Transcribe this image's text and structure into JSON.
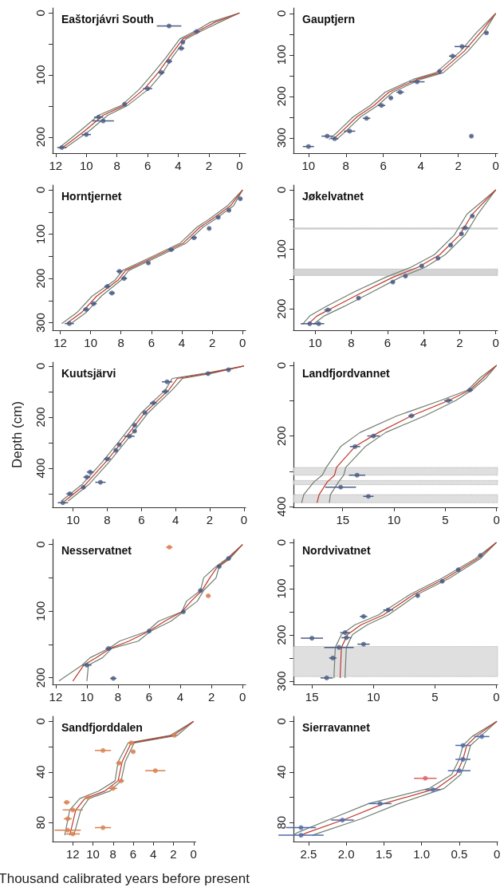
{
  "chart_data": [
    {
      "type": "line",
      "title": "Eaštorjávri South",
      "xlim": [
        12.2,
        -0.4
      ],
      "xticks": [
        12,
        10,
        8,
        6,
        4,
        2,
        0
      ],
      "ylim": [
        226,
        -8
      ],
      "yticks": [
        0,
        {
          "value": 50,
          "label": null
        },
        100,
        {
          "value": 150,
          "label": null
        },
        200
      ],
      "series": [
        {
          "type": "line",
          "color": "#6f7f70",
          "x": [
            0,
            1.9,
            2.8,
            3.9,
            4.8,
            5.6,
            6.5,
            7.7,
            9.2,
            10.4,
            11.8
          ],
          "values": [
            0,
            15,
            28,
            42,
            72,
            96,
            122,
            149,
            165,
            190,
            218
          ]
        },
        {
          "type": "line",
          "color": "#6f7f70",
          "x": [
            0,
            1.3,
            2.4,
            3.5,
            4.4,
            5.0,
            5.9,
            7.3,
            8.6,
            9.8,
            11.4
          ],
          "values": [
            0,
            15,
            28,
            42,
            72,
            96,
            122,
            149,
            165,
            190,
            218
          ]
        },
        {
          "type": "line",
          "color": "#c0392b",
          "x": [
            0,
            1.6,
            2.6,
            3.7,
            4.6,
            5.3,
            6.2,
            7.5,
            8.9,
            10.1,
            11.6
          ],
          "values": [
            0,
            15,
            28,
            42,
            72,
            96,
            122,
            149,
            165,
            190,
            218
          ]
        },
        {
          "type": "scatter",
          "color": "#4b5c84",
          "x": [
            4.6,
            2.8,
            3.7,
            3.8,
            4.6,
            5.1,
            6.0,
            7.5,
            9.2,
            8.9,
            10.0,
            11.6
          ],
          "values": [
            21,
            30,
            47,
            57,
            78,
            96,
            122,
            147,
            168,
            174,
            196,
            217
          ],
          "xerrors": [
            0.8,
            0.2,
            0.1,
            0.2,
            0.2,
            0.2,
            0.3,
            0.1,
            0.3,
            0.7,
            0.3,
            0.3
          ]
        }
      ]
    },
    {
      "type": "line",
      "title": "Gauptjern",
      "xlim": [
        10.8,
        -0.1
      ],
      "xticks": [
        10,
        8,
        6,
        4,
        2,
        0
      ],
      "ylim": [
        337,
        -13
      ],
      "yticks": [
        0,
        {
          "value": 50,
          "label": null
        },
        100,
        {
          "value": 150,
          "label": null
        },
        200,
        {
          "value": 250,
          "label": null
        },
        300
      ],
      "series": [
        {
          "type": "line",
          "color": "#6f7f70",
          "x": [
            0,
            1.0,
            1.9,
            3.2,
            4.4,
            5.9,
            6.7,
            7.6,
            8.4,
            8.9
          ],
          "values": [
            0,
            45,
            92,
            143,
            159,
            190,
            222,
            249,
            284,
            304
          ]
        },
        {
          "type": "line",
          "color": "#6f7f70",
          "x": [
            0,
            0.6,
            1.5,
            2.8,
            4.0,
            5.5,
            6.3,
            7.2,
            8.0,
            8.5
          ],
          "values": [
            0,
            45,
            92,
            143,
            159,
            190,
            222,
            249,
            284,
            304
          ]
        },
        {
          "type": "line",
          "color": "#c0392b",
          "x": [
            0,
            0.8,
            1.7,
            3.0,
            4.2,
            5.7,
            6.5,
            7.4,
            8.2,
            8.7
          ],
          "values": [
            0,
            45,
            92,
            143,
            159,
            190,
            222,
            249,
            284,
            304
          ]
        },
        {
          "type": "scatter",
          "color": "#4b5c84",
          "x": [
            0.5,
            1.8,
            2.3,
            3.0,
            4.2,
            5.1,
            5.6,
            6.1,
            6.9,
            7.8,
            9.0,
            8.6,
            10.0,
            1.3
          ],
          "values": [
            47,
            80,
            103,
            140,
            165,
            190,
            204,
            222,
            253,
            284,
            296,
            302,
            321,
            296
          ],
          "xerrors": [
            0.1,
            0.4,
            0.2,
            0.1,
            0.4,
            0.2,
            0.1,
            0.2,
            0.2,
            0.3,
            0.3,
            0.2,
            0.3,
            0.05
          ]
        }
      ]
    },
    {
      "type": "line",
      "title": "Horntjernet",
      "xlim": [
        12.5,
        -0.2
      ],
      "xticks": [
        12,
        10,
        8,
        6,
        4,
        2,
        0
      ],
      "ylim": [
        317,
        -11
      ],
      "yticks": [
        0,
        {
          "value": 50,
          "label": null
        },
        100,
        {
          "value": 150,
          "label": null
        },
        200,
        {
          "value": 250,
          "label": null
        },
        300
      ],
      "series": [
        {
          "type": "line",
          "color": "#6f7f70",
          "x": [
            0,
            1.0,
            2.2,
            3.0,
            4.1,
            6.1,
            7.9,
            8.4,
            9.9,
            10.9,
            11.9
          ],
          "values": [
            0,
            36,
            66,
            84,
            120,
            153,
            182,
            204,
            240,
            277,
            302
          ]
        },
        {
          "type": "line",
          "color": "#6f7f70",
          "x": [
            0,
            0.6,
            1.8,
            2.6,
            3.7,
            5.7,
            7.5,
            8.0,
            9.3,
            10.3,
            11.3
          ],
          "values": [
            0,
            36,
            66,
            84,
            120,
            153,
            182,
            204,
            240,
            277,
            302
          ]
        },
        {
          "type": "line",
          "color": "#c0392b",
          "x": [
            0,
            0.8,
            2.0,
            2.8,
            3.9,
            5.9,
            7.7,
            8.2,
            9.6,
            10.6,
            11.6
          ],
          "values": [
            0,
            36,
            66,
            84,
            120,
            153,
            182,
            204,
            240,
            277,
            302
          ]
        },
        {
          "type": "scatter",
          "color": "#4b5c84",
          "x": [
            0.15,
            0.9,
            1.6,
            2.2,
            3.2,
            4.7,
            6.2,
            8.1,
            7.8,
            8.9,
            8.6,
            9.8,
            10.3,
            11.4
          ],
          "values": [
            20,
            46,
            62,
            87,
            108,
            135,
            165,
            184,
            200,
            218,
            233,
            257,
            270,
            302
          ],
          "xerrors": [
            0.1,
            0.1,
            0.1,
            0.1,
            0.2,
            0.2,
            0.1,
            0.2,
            0.2,
            0.2,
            0.2,
            0.2,
            0.2,
            0.3
          ]
        }
      ]
    },
    {
      "type": "line",
      "title": "Jøkelvatnet",
      "xlim": [
        11.2,
        -0.1
      ],
      "xticks": [
        10,
        8,
        6,
        4,
        2,
        0
      ],
      "ylim": [
        236,
        -8
      ],
      "yticks": [
        0,
        {
          "value": 50,
          "label": null
        },
        100,
        {
          "value": 150,
          "label": null
        },
        200
      ],
      "bands": [
        {
          "axis": "y",
          "from": 64,
          "to": 66,
          "color": "#cccccc"
        },
        {
          "axis": "y",
          "from": 133,
          "to": 144,
          "color": "#cccccc"
        }
      ],
      "series": [
        {
          "type": "line",
          "color": "#6f7f70",
          "x": [
            0,
            1.6,
            2.3,
            3.4,
            4.7,
            6.1,
            7.8,
            9.4,
            10.3,
            10.7
          ],
          "values": [
            0,
            41,
            76,
            109,
            130,
            147,
            171,
            196,
            212,
            226
          ]
        },
        {
          "type": "line",
          "color": "#6f7f70",
          "x": [
            0,
            1.0,
            1.7,
            2.8,
            3.9,
            5.3,
            6.8,
            8.4,
            9.5,
            10.1
          ],
          "values": [
            0,
            41,
            76,
            109,
            130,
            147,
            171,
            196,
            212,
            226
          ]
        },
        {
          "type": "line",
          "color": "#c0392b",
          "x": [
            0,
            1.3,
            2.0,
            3.1,
            4.3,
            5.7,
            7.3,
            8.9,
            9.9,
            10.4
          ],
          "values": [
            0,
            41,
            76,
            109,
            130,
            147,
            171,
            196,
            212,
            226
          ]
        },
        {
          "type": "scatter",
          "color": "#4b5c84",
          "x": [
            1.3,
            1.7,
            1.9,
            2.5,
            3.2,
            4.1,
            5.0,
            5.7,
            7.6,
            9.3,
            10.3,
            9.8
          ],
          "values": [
            44,
            64,
            74,
            93,
            115,
            128,
            145,
            155,
            182,
            202,
            225,
            225
          ],
          "xerrors": [
            0.1,
            0.2,
            0.1,
            0.1,
            0.1,
            0.1,
            0.1,
            0.1,
            0.1,
            0.2,
            0.5,
            0.3
          ]
        }
      ]
    },
    {
      "type": "line",
      "title": "Kuutsjärvi",
      "ylabel": "Depth (cm)",
      "xlim": [
        11.2,
        -0.1
      ],
      "xticks": [
        10,
        8,
        6,
        4,
        2,
        0
      ],
      "ylim": [
        553,
        -15
      ],
      "yticks": [
        0,
        {
          "value": 100,
          "label": null
        },
        200,
        {
          "value": 300,
          "label": null
        },
        400,
        {
          "value": 500,
          "label": null
        }
      ],
      "series": [
        {
          "type": "line",
          "color": "#6f7f70",
          "x": [
            0,
            2.3,
            4.2,
            4.6,
            6.0,
            7.2,
            8.3,
            9.5,
            10.7
          ],
          "values": [
            0,
            29,
            49,
            94,
            183,
            286,
            376,
            465,
            529
          ]
        },
        {
          "type": "line",
          "color": "#6f7f70",
          "x": [
            0,
            1.9,
            3.6,
            4.2,
            5.6,
            6.8,
            7.9,
            9.1,
            10.3
          ],
          "values": [
            0,
            29,
            49,
            94,
            183,
            286,
            376,
            465,
            529
          ]
        },
        {
          "type": "line",
          "color": "#c0392b",
          "x": [
            0,
            2.1,
            3.9,
            4.4,
            5.8,
            7.0,
            8.1,
            9.3,
            10.5
          ],
          "values": [
            0,
            29,
            49,
            94,
            183,
            286,
            376,
            465,
            529
          ]
        },
        {
          "type": "scatter",
          "color": "#4b5c84",
          "x": [
            0.9,
            2.1,
            4.5,
            4.6,
            5.3,
            5.8,
            6.4,
            6.4,
            6.7,
            7.3,
            7.5,
            8.0,
            9.0,
            9.2,
            8.4,
            9.4,
            10.2,
            10.6
          ],
          "values": [
            15,
            30,
            62,
            100,
            145,
            183,
            232,
            255,
            275,
            308,
            330,
            364,
            415,
            435,
            455,
            475,
            500,
            535
          ],
          "xerrors": [
            0.1,
            0.1,
            0.3,
            0.2,
            0.2,
            0.1,
            0.1,
            0.1,
            0.3,
            0.1,
            0.1,
            0.2,
            0.2,
            0.2,
            0.3,
            0.1,
            0.2,
            0.3
          ]
        }
      ]
    },
    {
      "type": "line",
      "title": "Landfjordvannet",
      "xlim": [
        19.8,
        -0.1
      ],
      "xticks": [
        15,
        10,
        5,
        0
      ],
      "ylim": [
        402,
        -9
      ],
      "yticks": [
        0,
        {
          "value": 100,
          "label": null
        },
        200,
        {
          "value": 300,
          "label": null
        },
        400
      ],
      "bands": [
        {
          "axis": "y",
          "from": 289,
          "to": 311,
          "color": "#d9d9d9"
        },
        {
          "axis": "y",
          "from": 326,
          "to": 338,
          "color": "#d9d9d9"
        },
        {
          "axis": "y",
          "from": 366,
          "to": 389,
          "color": "#d9d9d9"
        }
      ],
      "series": [
        {
          "type": "line",
          "color": "#6f7f70",
          "x": [
            0,
            1.6,
            2.8,
            5.5,
            9.7,
            13.3,
            15.2,
            16.6,
            17.0,
            17.8,
            18.8,
            19.0
          ],
          "values": [
            0,
            35,
            70,
            100,
            143,
            190,
            230,
            289,
            311,
            330,
            366,
            389
          ]
        },
        {
          "type": "line",
          "color": "#6f7f70",
          "x": [
            0,
            1.0,
            2.4,
            4.0,
            7.0,
            10.8,
            12.8,
            14.7,
            14.9,
            15.4,
            16.2,
            16.3
          ],
          "values": [
            0,
            35,
            70,
            100,
            143,
            190,
            230,
            289,
            311,
            330,
            366,
            389
          ]
        },
        {
          "type": "line",
          "color": "#c0392b",
          "x": [
            0,
            1.3,
            2.6,
            4.7,
            8.3,
            11.5,
            13.8,
            15.6,
            15.8,
            16.5,
            17.3,
            17.5
          ],
          "values": [
            0,
            35,
            70,
            100,
            143,
            190,
            230,
            289,
            311,
            330,
            366,
            389
          ]
        },
        {
          "type": "scatter",
          "color": "#4b5c84",
          "x": [
            2.6,
            4.7,
            8.3,
            12.0,
            13.8,
            13.6,
            15.2,
            12.5
          ],
          "values": [
            70,
            100,
            143,
            200,
            230,
            311,
            345,
            371
          ],
          "xerrors": [
            0.3,
            0.4,
            0.3,
            0.6,
            0.5,
            0.8,
            1.5,
            0.5
          ]
        }
      ]
    },
    {
      "type": "line",
      "title": "Nesservatnet",
      "xlim": [
        12.2,
        -0.2
      ],
      "xticks": [
        12,
        10,
        8,
        6,
        4,
        2,
        0
      ],
      "ylim": [
        210,
        -8
      ],
      "yticks": [
        0,
        {
          "value": 50,
          "label": null
        },
        100,
        {
          "value": 150,
          "label": null
        },
        200
      ],
      "series": [
        {
          "type": "line",
          "color": "#6f7f70",
          "x": [
            0,
            1.0,
            1.7,
            2.5,
            2.7,
            3.6,
            3.9,
            5.4,
            6.1,
            7.9,
            8.6,
            9.8,
            10.3,
            11.8
          ],
          "values": [
            0,
            21,
            33,
            50,
            69,
            85,
            101,
            115,
            130,
            145,
            156,
            170,
            181,
            205
          ]
        },
        {
          "type": "line",
          "color": "#6f7f70",
          "x": [
            0,
            0.8,
            1.5,
            1.7,
            2.5,
            2.9,
            3.8,
            4.6,
            5.9,
            6.7,
            8.4,
            9.0,
            9.9,
            10.0
          ],
          "values": [
            0,
            21,
            33,
            50,
            69,
            85,
            101,
            115,
            130,
            145,
            156,
            170,
            181,
            205
          ]
        },
        {
          "type": "line",
          "color": "#c0392b",
          "x": [
            0,
            0.9,
            1.6,
            2.1,
            2.6,
            3.3,
            3.9,
            5.0,
            6.0,
            7.3,
            8.5,
            9.4,
            10.2,
            10.9
          ],
          "values": [
            0,
            21,
            33,
            50,
            69,
            85,
            101,
            115,
            130,
            145,
            156,
            170,
            181,
            205
          ]
        },
        {
          "type": "scatter",
          "color": "#4b5c84",
          "x": [
            0.9,
            1.5,
            2.7,
            3.8,
            6.0,
            8.6,
            10.0,
            8.3
          ],
          "values": [
            21,
            33,
            69,
            101,
            130,
            156,
            181,
            201
          ],
          "xerrors": [
            0.1,
            0.1,
            0.1,
            0.1,
            0.1,
            0.2,
            0.3,
            0.2
          ]
        },
        {
          "type": "scatter",
          "color": "#d9804f",
          "x": [
            4.7,
            2.2
          ],
          "values": [
            4,
            77
          ],
          "xerrors": [
            0.2,
            0.15
          ]
        }
      ]
    },
    {
      "type": "line",
      "title": "Nordvivatnet",
      "xlim": [
        16.5,
        -0.1
      ],
      "xticks": [
        15,
        10,
        5,
        0
      ],
      "ylim": [
        307,
        -7
      ],
      "yticks": [
        0,
        {
          "value": 50,
          "label": null
        },
        100,
        {
          "value": 150,
          "label": null
        },
        200,
        {
          "value": 250,
          "label": null
        },
        300
      ],
      "bands": [
        {
          "axis": "y",
          "from": 225,
          "to": 290,
          "color": "#d9d9d9"
        }
      ],
      "series": [
        {
          "type": "line",
          "color": "#6f7f70",
          "x": [
            0,
            1.7,
            4.4,
            7.0,
            9.6,
            11.5,
            12.6,
            13.1,
            13.2,
            13.2
          ],
          "values": [
            0,
            35,
            77,
            112,
            157,
            178,
            199,
            227,
            286,
            293
          ]
        },
        {
          "type": "line",
          "color": "#6f7f70",
          "x": [
            0,
            1.3,
            3.8,
            6.4,
            8.8,
            10.5,
            11.7,
            12.2,
            12.3,
            12.3
          ],
          "values": [
            0,
            35,
            77,
            112,
            157,
            178,
            199,
            227,
            286,
            293
          ]
        },
        {
          "type": "line",
          "color": "#c0392b",
          "x": [
            0,
            1.5,
            4.1,
            6.7,
            9.2,
            11.0,
            12.1,
            12.6,
            12.7,
            12.7
          ],
          "values": [
            0,
            35,
            77,
            112,
            157,
            178,
            199,
            227,
            286,
            293
          ]
        },
        {
          "type": "scatter",
          "color": "#4b5c84",
          "x": [
            1.3,
            3.1,
            4.4,
            6.4,
            8.8,
            10.8,
            12.3,
            12.2,
            10.8,
            12.8,
            13.3,
            13.8,
            15.0
          ],
          "values": [
            28,
            59,
            84,
            115,
            146,
            160,
            195,
            206,
            220,
            227,
            250,
            293,
            207
          ],
          "xerrors": [
            0.1,
            0.1,
            0.1,
            0.1,
            0.4,
            0.3,
            0.4,
            0.4,
            0.5,
            1.2,
            0.3,
            0.5,
            0.9
          ]
        }
      ]
    },
    {
      "type": "line",
      "title": "Sandfjorddalen",
      "xlabel": "Thousand calibrated years before present",
      "xlim": [
        14.0,
        -0.2
      ],
      "xticks": [
        12,
        10,
        8,
        6,
        4,
        2,
        0
      ],
      "ylim": [
        95,
        -4
      ],
      "yticks": [
        0,
        {
          "value": 20,
          "label": null
        },
        40,
        {
          "value": 60,
          "label": null
        },
        80
      ],
      "series": [
        {
          "type": "line",
          "color": "#6f7f70",
          "x": [
            0,
            2.3,
            6.5,
            7.5,
            7.8,
            9.4,
            11.3,
            12.3,
            12.8
          ],
          "values": [
            0,
            11,
            17,
            32,
            47,
            55,
            61,
            70,
            90
          ]
        },
        {
          "type": "line",
          "color": "#6f7f70",
          "x": [
            0,
            1.6,
            5.9,
            6.8,
            7.2,
            8.3,
            10.4,
            11.2,
            11.9
          ],
          "values": [
            0,
            11,
            17,
            32,
            47,
            55,
            61,
            70,
            90
          ]
        },
        {
          "type": "line",
          "color": "#c0392b",
          "x": [
            0,
            2.0,
            6.2,
            7.1,
            7.5,
            8.8,
            10.8,
            11.7,
            12.3
          ],
          "values": [
            0,
            11,
            17,
            32,
            47,
            55,
            61,
            70,
            90
          ]
        },
        {
          "type": "scatter",
          "color": "#d9804f",
          "x": [
            1.9,
            6.2,
            9.0,
            6.0,
            7.4,
            3.8,
            7.2,
            8.0,
            10.5,
            12.6,
            12.0,
            12.5,
            9.0,
            12.5,
            12.0
          ],
          "values": [
            11,
            17,
            23,
            24,
            33,
            39,
            47,
            53,
            60,
            64,
            70,
            77,
            84,
            86,
            89
          ],
          "xerrors": [
            0.2,
            0.3,
            0.8,
            0.2,
            0.3,
            1.0,
            0.3,
            0.4,
            0.2,
            0.3,
            1.0,
            0.4,
            0.8,
            1.3,
            0.7
          ]
        }
      ]
    },
    {
      "type": "line",
      "title": "Sierravannet",
      "xlim": [
        2.7,
        -0.01
      ],
      "xticks": [
        {
          "value": 2.5,
          "label": "2.5"
        },
        {
          "value": 2,
          "label": "2.0"
        },
        {
          "value": 1.5,
          "label": "1.5"
        },
        {
          "value": 1,
          "label": "1.0"
        },
        {
          "value": 0.5,
          "label": "0.5"
        },
        0
      ],
      "ylim": [
        95,
        -4
      ],
      "yticks": [
        0,
        {
          "value": 20,
          "label": null
        },
        40,
        {
          "value": 60,
          "label": null
        },
        80
      ],
      "series": [
        {
          "type": "line",
          "color": "#6f7f70",
          "x": [
            0,
            0.33,
            0.45,
            0.5,
            0.6,
            0.9,
            1.7,
            2.2,
            2.65,
            2.7
          ],
          "values": [
            0,
            12,
            19,
            30,
            42,
            53,
            65,
            77,
            88,
            90
          ]
        },
        {
          "type": "line",
          "color": "#6f7f70",
          "x": [
            0,
            0.22,
            0.35,
            0.4,
            0.48,
            0.7,
            1.3,
            1.8,
            2.35,
            2.45
          ],
          "values": [
            0,
            12,
            19,
            30,
            42,
            53,
            65,
            77,
            88,
            90
          ]
        },
        {
          "type": "line",
          "color": "#c0392b",
          "x": [
            0,
            0.28,
            0.4,
            0.45,
            0.54,
            0.8,
            1.5,
            2.0,
            2.52,
            2.6
          ],
          "values": [
            0,
            12,
            19,
            30,
            42,
            53,
            65,
            77,
            88,
            90
          ]
        },
        {
          "type": "scatter",
          "color": "#4d6aa8",
          "x": [
            0.2,
            0.45,
            0.45,
            0.5,
            0.85,
            1.55,
            2.05,
            2.6,
            2.6
          ],
          "values": [
            12,
            19,
            30,
            39,
            54,
            65,
            78,
            84,
            90
          ],
          "xerrors": [
            0.1,
            0.1,
            0.1,
            0.15,
            0.1,
            0.15,
            0.15,
            0.2,
            0.3
          ]
        },
        {
          "type": "scatter",
          "color": "#e06060",
          "x": [
            0.95
          ],
          "values": [
            45
          ],
          "xerrors": [
            0.15
          ]
        }
      ]
    }
  ]
}
